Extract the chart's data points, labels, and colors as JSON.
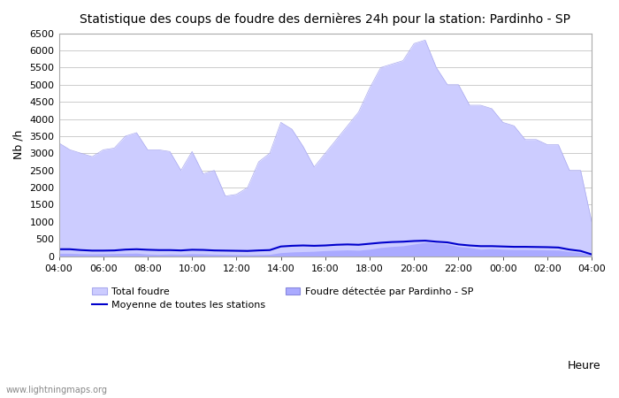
{
  "title": "Statistique des coups de foudre des dernières 24h pour la station: Pardinho - SP",
  "xlabel": "Heure",
  "ylabel": "Nb /h",
  "xlim": [
    0,
    24
  ],
  "ylim": [
    0,
    6500
  ],
  "yticks": [
    0,
    500,
    1000,
    1500,
    2000,
    2500,
    3000,
    3500,
    4000,
    4500,
    5000,
    5500,
    6000,
    6500
  ],
  "xtick_labels": [
    "04:00",
    "06:00",
    "08:00",
    "10:00",
    "12:00",
    "14:00",
    "16:00",
    "18:00",
    "20:00",
    "22:00",
    "00:00",
    "02:00",
    "04:00"
  ],
  "xtick_positions": [
    0,
    2,
    4,
    6,
    8,
    10,
    12,
    14,
    16,
    18,
    20,
    22,
    24
  ],
  "bg_color": "#ffffff",
  "plot_bg_color": "#ffffff",
  "grid_color": "#cccccc",
  "total_foudre_color": "#ccccff",
  "total_foudre_edge": "#aaaaee",
  "pardinho_color": "#aaaaff",
  "pardinho_edge": "#8888dd",
  "moyenne_color": "#0000cc",
  "watermark": "www.lightningmaps.org",
  "legend_total": "Total foudre",
  "legend_moyenne": "Moyenne de toutes les stations",
  "legend_pardinho": "Foudre détectée par Pardinho - SP",
  "hours_x": [
    0,
    0.5,
    1,
    1.5,
    2,
    2.5,
    3,
    3.5,
    4,
    4.5,
    5,
    5.5,
    6,
    6.5,
    7,
    7.5,
    8,
    8.5,
    9,
    9.5,
    10,
    10.5,
    11,
    11.5,
    12,
    12.5,
    13,
    13.5,
    14,
    14.5,
    15,
    15.5,
    16,
    16.5,
    17,
    17.5,
    18,
    18.5,
    19,
    19.5,
    20,
    20.5,
    21,
    21.5,
    22,
    22.5,
    23,
    23.5,
    24
  ],
  "total_foudre_y": [
    3300,
    3100,
    3000,
    2900,
    3100,
    3150,
    3500,
    3600,
    3100,
    3100,
    3050,
    2500,
    3050,
    2400,
    2500,
    1750,
    1800,
    2000,
    2750,
    3000,
    3900,
    3700,
    3200,
    2600,
    3000,
    3400,
    3800,
    4200,
    4900,
    5500,
    5600,
    5700,
    6200,
    6300,
    5500,
    5000,
    5000,
    4400,
    4400,
    4300,
    3900,
    3800,
    3400,
    3400,
    3250,
    3250,
    2500,
    2500,
    1000
  ],
  "pardinho_y": [
    80,
    80,
    70,
    65,
    70,
    75,
    80,
    85,
    60,
    50,
    60,
    55,
    70,
    65,
    55,
    50,
    45,
    40,
    45,
    50,
    100,
    120,
    130,
    140,
    160,
    170,
    180,
    170,
    200,
    250,
    280,
    300,
    350,
    400,
    380,
    350,
    280,
    250,
    200,
    220,
    200,
    190,
    190,
    185,
    180,
    175,
    130,
    100,
    50
  ],
  "moyenne_y": [
    200,
    200,
    175,
    160,
    160,
    165,
    190,
    200,
    185,
    175,
    175,
    165,
    185,
    180,
    165,
    160,
    155,
    150,
    165,
    175,
    280,
    300,
    310,
    300,
    310,
    330,
    340,
    330,
    360,
    390,
    410,
    420,
    440,
    450,
    420,
    400,
    340,
    310,
    290,
    290,
    280,
    270,
    270,
    265,
    260,
    250,
    190,
    150,
    50
  ]
}
